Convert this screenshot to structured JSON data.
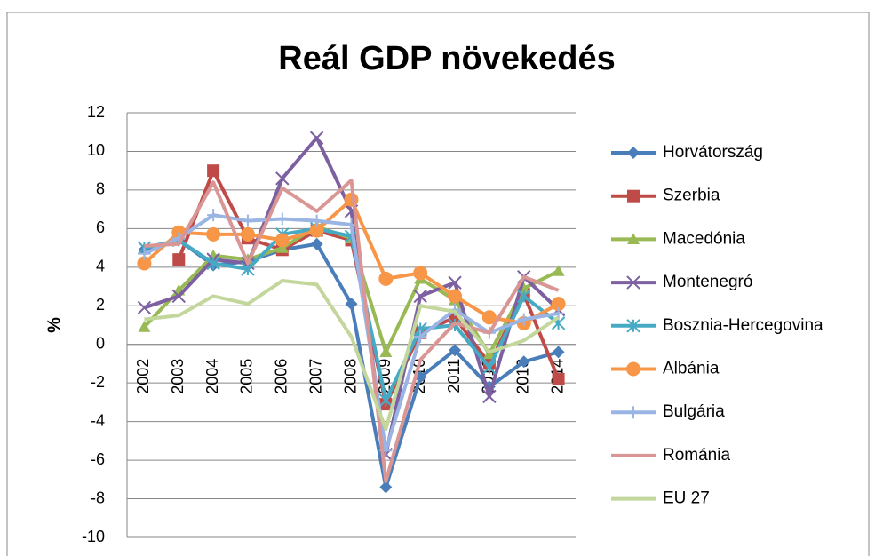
{
  "chart_data": {
    "type": "line",
    "title": "Reál GDP növekedés",
    "ylabel": "%",
    "categories": [
      "2002",
      "2003",
      "2004",
      "2005",
      "2006",
      "2007",
      "2008",
      "2009",
      "2010",
      "2011",
      "2012",
      "2013",
      "2014"
    ],
    "ylim": [
      -10,
      12
    ],
    "yticks": [
      -10,
      -8,
      -6,
      -4,
      -2,
      0,
      2,
      4,
      6,
      8,
      10,
      12
    ],
    "grid": true,
    "legend": "right",
    "series": [
      {
        "name": "Horvátország",
        "color": "#4a7ebb",
        "marker": "diamond",
        "values": [
          4.9,
          5.4,
          4.1,
          4.3,
          4.9,
          5.2,
          2.1,
          -7.4,
          -1.7,
          -0.3,
          -2.2,
          -0.9,
          -0.4
        ]
      },
      {
        "name": "Szerbia",
        "color": "#be4b48",
        "marker": "square",
        "values": [
          null,
          4.4,
          9.0,
          5.5,
          4.9,
          5.9,
          5.4,
          -3.1,
          0.6,
          1.4,
          -1.0,
          2.6,
          -1.8
        ]
      },
      {
        "name": "Macedónia",
        "color": "#98b954",
        "marker": "triangle",
        "values": [
          0.9,
          2.8,
          4.6,
          4.4,
          5.0,
          6.1,
          5.5,
          -0.4,
          3.4,
          2.3,
          -0.5,
          2.9,
          3.8
        ]
      },
      {
        "name": "Montenegró",
        "color": "#7d60a0",
        "marker": "x",
        "values": [
          1.9,
          2.5,
          4.4,
          4.2,
          8.6,
          10.7,
          6.9,
          -5.7,
          2.5,
          3.2,
          -2.7,
          3.5,
          1.8
        ]
      },
      {
        "name": "Bosznia-Hercegovina",
        "color": "#46aac5",
        "marker": "star",
        "values": [
          5.0,
          5.4,
          4.2,
          3.9,
          5.7,
          6.0,
          5.6,
          -2.9,
          0.8,
          1.0,
          -1.2,
          2.5,
          1.1
        ]
      },
      {
        "name": "Albánia",
        "color": "#f79646",
        "marker": "circle",
        "values": [
          4.2,
          5.8,
          5.7,
          5.7,
          5.4,
          5.9,
          7.5,
          3.4,
          3.7,
          2.5,
          1.4,
          1.1,
          2.1
        ]
      },
      {
        "name": "Bulgária",
        "color": "#9ab5e4",
        "marker": "plus",
        "values": [
          4.7,
          5.5,
          6.7,
          6.4,
          6.5,
          6.4,
          6.2,
          -5.5,
          0.4,
          1.8,
          0.6,
          1.3,
          1.6
        ]
      },
      {
        "name": "Románia",
        "color": "#d99694",
        "marker": "none",
        "values": [
          5.1,
          5.2,
          8.4,
          4.2,
          8.1,
          6.9,
          8.5,
          -7.1,
          -0.8,
          1.1,
          0.6,
          3.5,
          2.8
        ]
      },
      {
        "name": "EU 27",
        "color": "#c3d69b",
        "marker": "none",
        "values": [
          1.3,
          1.5,
          2.5,
          2.1,
          3.3,
          3.1,
          0.4,
          -4.4,
          2.0,
          1.7,
          -0.4,
          0.2,
          1.4
        ]
      }
    ]
  }
}
